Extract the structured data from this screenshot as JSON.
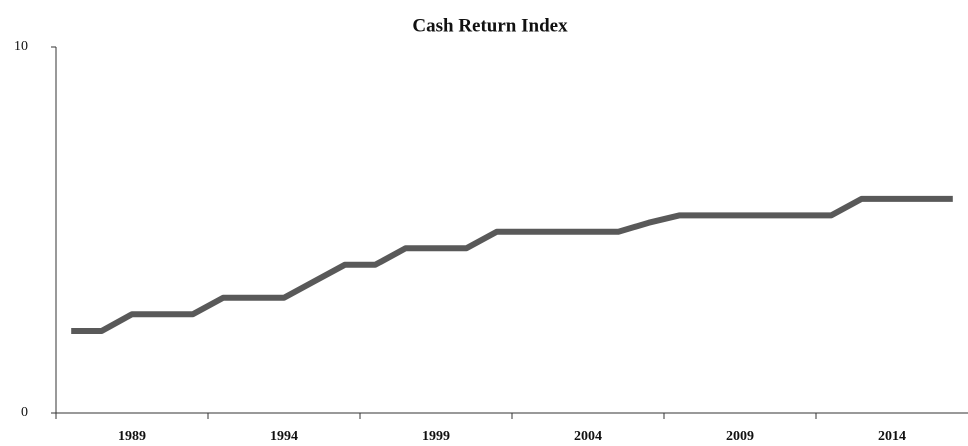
{
  "chart_data": {
    "type": "line",
    "title": "Cash Return Index",
    "categories": [
      null,
      null,
      "1989",
      null,
      null,
      null,
      null,
      "1994",
      null,
      null,
      null,
      null,
      "1999",
      null,
      null,
      null,
      null,
      "2004",
      null,
      null,
      null,
      null,
      "2009",
      null,
      null,
      null,
      null,
      "2014",
      null,
      null
    ],
    "series": [
      {
        "name": "Cash Return Index",
        "color": "#595959",
        "values": [
          2.24,
          2.24,
          2.7,
          2.7,
          2.7,
          3.15,
          3.15,
          3.15,
          3.6,
          4.05,
          4.05,
          4.5,
          4.5,
          4.5,
          4.95,
          4.95,
          4.95,
          4.95,
          4.95,
          5.2,
          5.4,
          5.4,
          5.4,
          5.4,
          5.4,
          5.4,
          5.85,
          5.85,
          5.85,
          5.85
        ]
      }
    ],
    "ylim": [
      0,
      10
    ],
    "yticks": [
      0,
      10
    ]
  }
}
